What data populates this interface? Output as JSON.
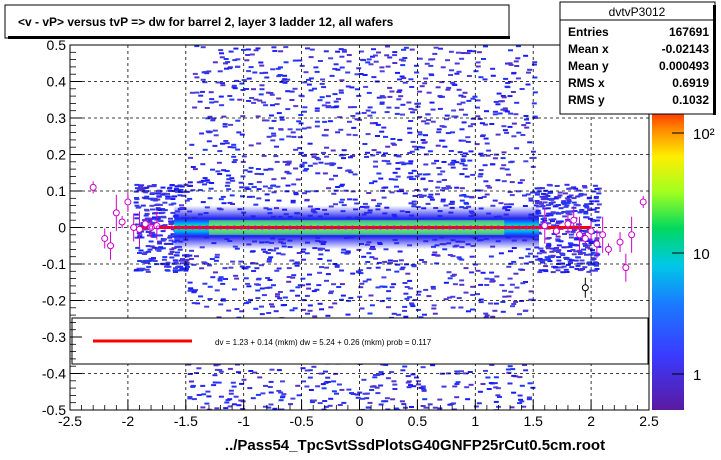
{
  "title": "<v - vP>       versus  tvP =>  dw for barrel 2, layer 3 ladder 12, all wafers",
  "footer": "../Pass54_TpcSvtSsdPlotsG40GNFP25rCut0.5cm.root",
  "stats": {
    "name": "dvtvP3012",
    "rows": [
      {
        "label": "Entries",
        "value": "167691"
      },
      {
        "label": "Mean x",
        "value": "-0.02143"
      },
      {
        "label": "Mean y",
        "value": "0.000493"
      },
      {
        "label": "RMS x",
        "value": "0.6919"
      },
      {
        "label": "RMS y",
        "value": "0.1032"
      }
    ]
  },
  "fit_text": "dv =     1.23 +  0.14 (mkm) dw =     5.24 +  0.26 (mkm) prob = 0.117",
  "colors": {
    "fit_line": "#ff0000",
    "profile": "#cc00cc",
    "grid": "#000000"
  },
  "chart_data": {
    "type": "heatmap",
    "xlim": [
      -2.5,
      2.5
    ],
    "ylim": [
      -0.5,
      0.5
    ],
    "x_ticks": [
      "-2.5",
      "-2",
      "-1.5",
      "-1",
      "-0.5",
      "0",
      "0.5",
      "1",
      "1.5",
      "2",
      "2.5"
    ],
    "y_ticks": [
      "-0.5",
      "-0.4",
      "-0.3",
      "-0.2",
      "-0.1",
      "0",
      "0.1",
      "0.2",
      "0.3",
      "0.4",
      "0.5"
    ],
    "grid": true,
    "colorbar": {
      "scale": "log",
      "ticks": [
        "1",
        "10",
        "10²"
      ]
    },
    "fit_line": {
      "x": [
        -1.9,
        2.0
      ],
      "y": [
        0.0,
        0.0
      ]
    },
    "profile_points": [
      {
        "x": -2.3,
        "y": 0.11
      },
      {
        "x": -2.2,
        "y": -0.03
      },
      {
        "x": -2.15,
        "y": -0.05
      },
      {
        "x": -2.1,
        "y": 0.04
      },
      {
        "x": -2.05,
        "y": 0.015
      },
      {
        "x": -2.0,
        "y": 0.07
      },
      {
        "x": -1.95,
        "y": 0.0
      },
      {
        "x": -1.9,
        "y": -0.005
      },
      {
        "x": -1.85,
        "y": 0.01
      },
      {
        "x": -1.8,
        "y": 0.0
      },
      {
        "x": -1.75,
        "y": 0.005
      },
      {
        "x": 1.6,
        "y": 0.005
      },
      {
        "x": 1.7,
        "y": -0.01
      },
      {
        "x": 1.8,
        "y": 0.01
      },
      {
        "x": 1.85,
        "y": 0.02
      },
      {
        "x": 1.9,
        "y": -0.02
      },
      {
        "x": 1.95,
        "y": -0.03
      },
      {
        "x": 2.0,
        "y": -0.01
      },
      {
        "x": 2.05,
        "y": -0.045
      },
      {
        "x": 2.1,
        "y": -0.02
      },
      {
        "x": 2.15,
        "y": -0.06
      },
      {
        "x": 2.25,
        "y": -0.04
      },
      {
        "x": 2.3,
        "y": -0.11
      },
      {
        "x": 2.35,
        "y": -0.02
      },
      {
        "x": 2.45,
        "y": 0.07
      },
      {
        "x": 1.95,
        "y": -0.165
      }
    ]
  }
}
